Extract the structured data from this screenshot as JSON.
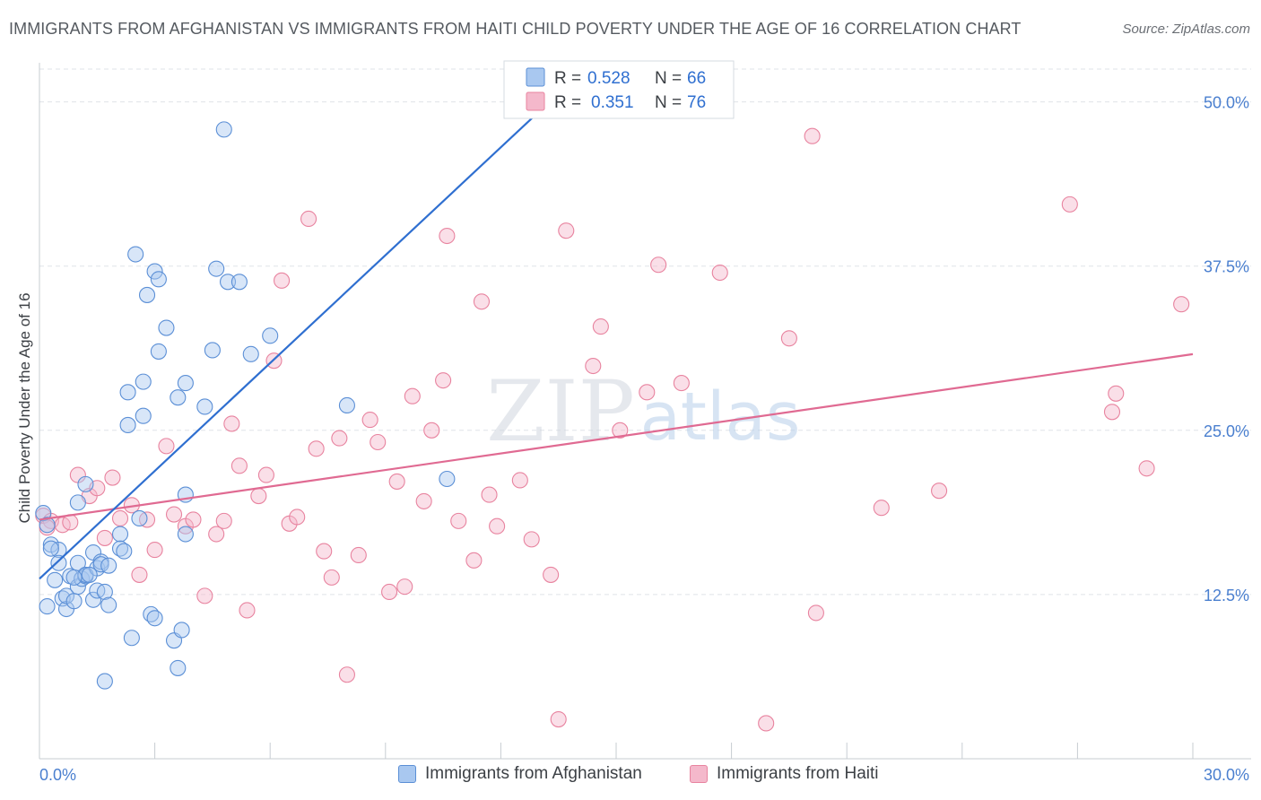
{
  "title": "IMMIGRANTS FROM AFGHANISTAN VS IMMIGRANTS FROM HAITI CHILD POVERTY UNDER THE AGE OF 16 CORRELATION CHART",
  "source": "Source: ZipAtlas.com",
  "watermark": {
    "zip": "ZIP",
    "atlas": "atlas"
  },
  "colors": {
    "blue_fill": "#a9c8f0",
    "blue_stroke": "#5b8fd6",
    "blue_line": "#2f6fd0",
    "pink_fill": "#f4b8cb",
    "pink_stroke": "#e8839f",
    "pink_line": "#e06a92",
    "axis_text": "#4a7fcf",
    "grid": "#dfe3e8"
  },
  "legend": {
    "items": [
      {
        "r_label": "R =",
        "r_value": "0.528",
        "n_label": "N =",
        "n_value": "66"
      },
      {
        "r_label": "R =",
        "r_value": "0.351",
        "n_label": "N =",
        "n_value": "76"
      }
    ]
  },
  "chart_data": {
    "type": "scatter",
    "title": "IMMIGRANTS FROM AFGHANISTAN VS IMMIGRANTS FROM HAITI CHILD POVERTY UNDER THE AGE OF 16 CORRELATION CHART",
    "xlabel": "",
    "ylabel": "Child Poverty Under the Age of 16",
    "xlim": [
      0,
      30
    ],
    "ylim": [
      0,
      52.5
    ],
    "x_tick_labels": [
      "0.0%",
      "30.0%"
    ],
    "y_ticks": [
      12.5,
      25.0,
      37.5,
      50.0
    ],
    "y_tick_labels": [
      "12.5%",
      "25.0%",
      "37.5%",
      "50.0%"
    ],
    "grid": true,
    "legend_position": "top-center",
    "series": [
      {
        "name": "Immigrants from Afghanistan",
        "color": "#a9c8f0",
        "trend": {
          "x": [
            0,
            13.3
          ],
          "y": [
            13.7,
            50.1
          ]
        },
        "points": [
          [
            0.1,
            18.7
          ],
          [
            0.2,
            17.8
          ],
          [
            0.3,
            16.3
          ],
          [
            0.5,
            15.9
          ],
          [
            0.5,
            14.9
          ],
          [
            0.4,
            13.6
          ],
          [
            0.2,
            11.6
          ],
          [
            0.6,
            12.2
          ],
          [
            0.7,
            11.4
          ],
          [
            0.7,
            12.4
          ],
          [
            0.8,
            13.9
          ],
          [
            0.9,
            12.0
          ],
          [
            1.0,
            13.1
          ],
          [
            1.1,
            13.7
          ],
          [
            1.0,
            14.9
          ],
          [
            1.2,
            13.9
          ],
          [
            1.2,
            14.0
          ],
          [
            1.4,
            15.7
          ],
          [
            1.4,
            12.1
          ],
          [
            1.5,
            12.8
          ],
          [
            1.5,
            14.5
          ],
          [
            1.6,
            15.0
          ],
          [
            1.6,
            14.8
          ],
          [
            1.7,
            12.7
          ],
          [
            1.8,
            14.7
          ],
          [
            1.8,
            11.7
          ],
          [
            2.1,
            17.1
          ],
          [
            2.1,
            16.0
          ],
          [
            2.2,
            15.8
          ],
          [
            2.3,
            25.4
          ],
          [
            2.3,
            27.9
          ],
          [
            1.0,
            19.5
          ],
          [
            1.2,
            20.9
          ],
          [
            2.4,
            9.2
          ],
          [
            2.5,
            38.4
          ],
          [
            2.6,
            18.3
          ],
          [
            2.7,
            26.1
          ],
          [
            2.7,
            28.7
          ],
          [
            2.8,
            35.3
          ],
          [
            2.9,
            11.0
          ],
          [
            3.0,
            37.1
          ],
          [
            3.0,
            10.7
          ],
          [
            3.1,
            36.5
          ],
          [
            3.1,
            31.0
          ],
          [
            3.3,
            32.8
          ],
          [
            3.5,
            9.0
          ],
          [
            3.6,
            6.9
          ],
          [
            3.6,
            27.5
          ],
          [
            3.7,
            9.8
          ],
          [
            3.8,
            28.6
          ],
          [
            3.8,
            20.1
          ],
          [
            3.8,
            17.1
          ],
          [
            4.3,
            26.8
          ],
          [
            4.5,
            31.1
          ],
          [
            4.6,
            37.3
          ],
          [
            4.8,
            47.9
          ],
          [
            4.9,
            36.3
          ],
          [
            5.2,
            36.3
          ],
          [
            5.5,
            30.8
          ],
          [
            6.0,
            32.2
          ],
          [
            8.0,
            26.9
          ],
          [
            10.6,
            21.3
          ],
          [
            1.7,
            5.9
          ],
          [
            0.9,
            13.8
          ],
          [
            1.3,
            14.0
          ],
          [
            0.3,
            16.0
          ]
        ]
      },
      {
        "name": "Immigrants from Haiti",
        "color": "#f4b8cb",
        "trend": {
          "x": [
            0,
            30
          ],
          "y": [
            18.2,
            30.8
          ]
        },
        "points": [
          [
            0.1,
            18.5
          ],
          [
            0.3,
            18.1
          ],
          [
            0.6,
            17.8
          ],
          [
            0.8,
            18.0
          ],
          [
            1.0,
            21.6
          ],
          [
            1.3,
            20.0
          ],
          [
            1.5,
            20.6
          ],
          [
            1.7,
            16.8
          ],
          [
            1.9,
            21.4
          ],
          [
            2.1,
            18.3
          ],
          [
            2.4,
            19.3
          ],
          [
            2.6,
            14.0
          ],
          [
            2.8,
            18.2
          ],
          [
            3.0,
            15.9
          ],
          [
            3.3,
            23.8
          ],
          [
            3.5,
            18.6
          ],
          [
            3.8,
            17.7
          ],
          [
            4.0,
            18.2
          ],
          [
            4.3,
            12.4
          ],
          [
            4.6,
            17.1
          ],
          [
            4.8,
            18.1
          ],
          [
            5.0,
            25.5
          ],
          [
            5.2,
            22.3
          ],
          [
            5.4,
            11.3
          ],
          [
            5.7,
            20.0
          ],
          [
            5.9,
            21.6
          ],
          [
            6.1,
            30.3
          ],
          [
            6.3,
            36.4
          ],
          [
            6.5,
            17.9
          ],
          [
            6.7,
            18.4
          ],
          [
            7.0,
            41.1
          ],
          [
            7.2,
            23.6
          ],
          [
            7.4,
            15.8
          ],
          [
            7.6,
            13.8
          ],
          [
            7.8,
            24.4
          ],
          [
            8.0,
            6.4
          ],
          [
            8.3,
            15.5
          ],
          [
            8.6,
            25.8
          ],
          [
            8.8,
            24.1
          ],
          [
            9.1,
            12.7
          ],
          [
            9.3,
            21.1
          ],
          [
            9.5,
            13.1
          ],
          [
            9.7,
            27.6
          ],
          [
            10.0,
            19.6
          ],
          [
            10.2,
            25.0
          ],
          [
            10.5,
            28.8
          ],
          [
            10.6,
            39.8
          ],
          [
            10.9,
            18.1
          ],
          [
            11.3,
            15.1
          ],
          [
            11.5,
            34.8
          ],
          [
            11.7,
            20.1
          ],
          [
            11.9,
            17.7
          ],
          [
            12.5,
            21.2
          ],
          [
            12.8,
            16.7
          ],
          [
            13.3,
            14.0
          ],
          [
            13.5,
            3.0
          ],
          [
            13.7,
            40.2
          ],
          [
            14.4,
            29.9
          ],
          [
            14.6,
            32.9
          ],
          [
            15.1,
            25.0
          ],
          [
            15.8,
            27.9
          ],
          [
            16.1,
            37.6
          ],
          [
            16.7,
            28.6
          ],
          [
            17.7,
            37.0
          ],
          [
            18.9,
            2.7
          ],
          [
            19.5,
            32.0
          ],
          [
            20.1,
            47.4
          ],
          [
            20.2,
            11.1
          ],
          [
            21.9,
            19.1
          ],
          [
            23.4,
            20.4
          ],
          [
            26.8,
            42.2
          ],
          [
            27.9,
            26.4
          ],
          [
            28.0,
            27.8
          ],
          [
            28.8,
            22.1
          ],
          [
            29.7,
            34.6
          ],
          [
            0.2,
            17.6
          ]
        ]
      }
    ]
  }
}
